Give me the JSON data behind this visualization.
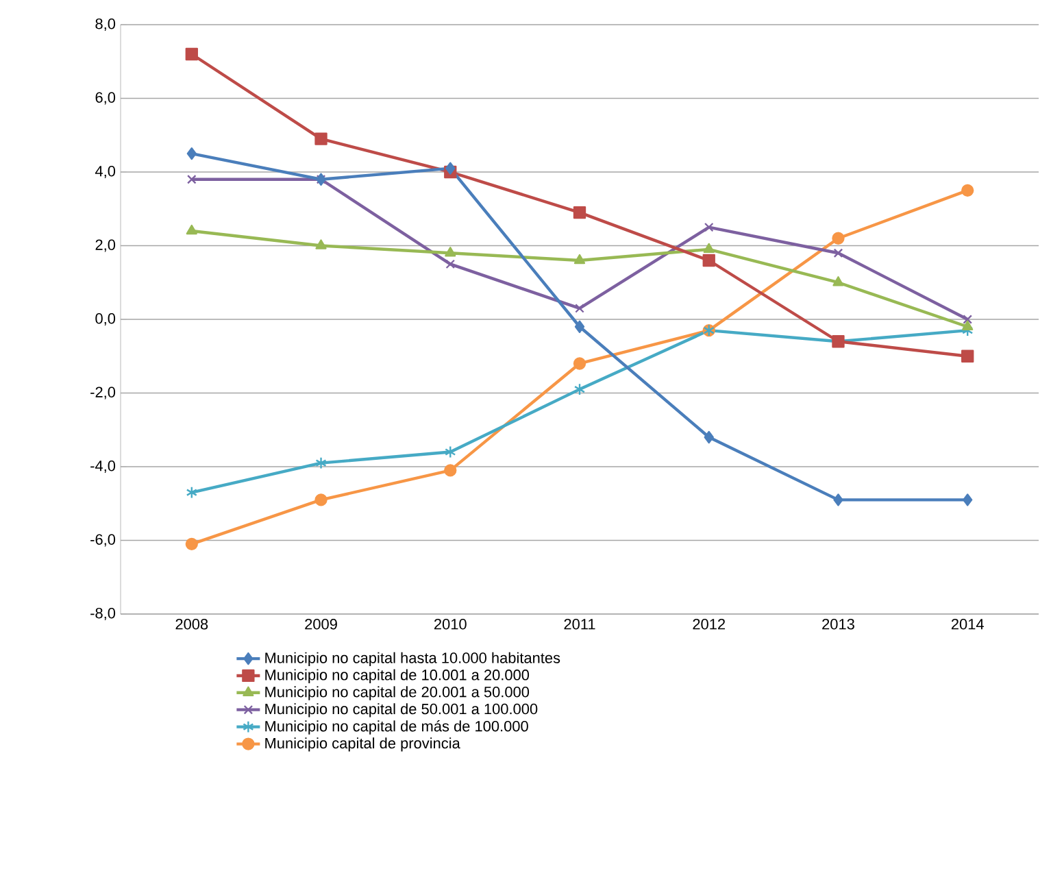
{
  "chart_data": {
    "type": "line",
    "categories": [
      "2008",
      "2009",
      "2010",
      "2011",
      "2012",
      "2013",
      "2014"
    ],
    "series": [
      {
        "name": "Municipio no capital hasta 10.000 habitantes",
        "color": "#4a7ebb",
        "marker": "diamond",
        "values": [
          4.5,
          3.8,
          4.1,
          -0.2,
          -3.2,
          -4.9,
          -4.9
        ]
      },
      {
        "name": "Municipio no capital de 10.001 a 20.000",
        "color": "#be4b48",
        "marker": "square",
        "values": [
          7.2,
          4.9,
          4.0,
          2.9,
          1.6,
          -0.6,
          -1.0
        ]
      },
      {
        "name": "Municipio no capital de 20.001 a 50.000",
        "color": "#98b954",
        "marker": "triangle",
        "values": [
          2.4,
          2.0,
          1.8,
          1.6,
          1.9,
          1.0,
          -0.2
        ]
      },
      {
        "name": "Municipio no capital de 50.001 a 100.000",
        "color": "#7d60a0",
        "marker": "cross",
        "values": [
          3.8,
          3.8,
          1.5,
          0.3,
          2.5,
          1.8,
          0.0
        ]
      },
      {
        "name": "Municipio no capital  de más de 100.000",
        "color": "#46aac5",
        "marker": "cross",
        "values": [
          -4.7,
          -3.9,
          -3.6,
          -1.9,
          -0.3,
          -0.6,
          -0.3
        ]
      },
      {
        "name": "Municipio capital de provincia",
        "color": "#f79646",
        "marker": "circle",
        "values": [
          -6.1,
          -4.9,
          -4.1,
          -1.2,
          -0.3,
          2.2,
          3.5
        ]
      }
    ],
    "ylim": [
      -8,
      8
    ],
    "yticks": [
      {
        "value": -8,
        "label": "-8,0"
      },
      {
        "value": -6,
        "label": "-6,0"
      },
      {
        "value": -4,
        "label": "-4,0"
      },
      {
        "value": -2,
        "label": "-2,0"
      },
      {
        "value": 0,
        "label": "0,0"
      },
      {
        "value": 2,
        "label": "2,0"
      },
      {
        "value": 4,
        "label": "4,0"
      },
      {
        "value": 6,
        "label": "6,0"
      },
      {
        "value": 8,
        "label": "8,0"
      }
    ],
    "grid": "y",
    "legend": "bottom",
    "line_style": "solid"
  }
}
